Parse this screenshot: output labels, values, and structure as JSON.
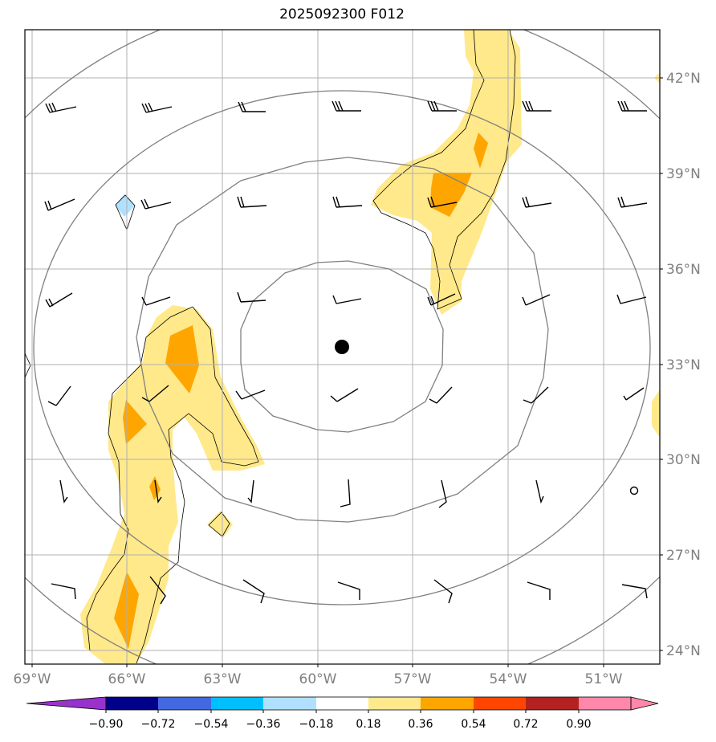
{
  "title": "2025092300 F012",
  "lat_labels": [
    "42°N",
    "39°N",
    "36°N",
    "33°N",
    "30°N",
    "27°N",
    "24°N"
  ],
  "lon_labels": [
    "69°W",
    "66°W",
    "63°W",
    "60°W",
    "57°W",
    "54°W",
    "51°W"
  ],
  "colorbar": {
    "labels": [
      "−0.90",
      "−0.72",
      "−0.54",
      "−0.36",
      "−0.18",
      "0.18",
      "0.36",
      "0.54",
      "0.72",
      "0.90"
    ],
    "colors": [
      "#9932cc",
      "#00008b",
      "#4169e1",
      "#00bfff",
      "#b0e0ff",
      "#ffffff",
      "#ffe98a",
      "#ffa500",
      "#ff4500",
      "#b22222",
      "#ff88aa"
    ]
  },
  "map_colors": {
    "fill_low": "#ffe98a",
    "fill_mid": "#ffa500",
    "fill_neg": "#b0e0ff",
    "grid": "#b0b0b0",
    "rings": "#808080"
  },
  "storm_center": {
    "lat": 33.5,
    "lon": -59.2
  }
}
